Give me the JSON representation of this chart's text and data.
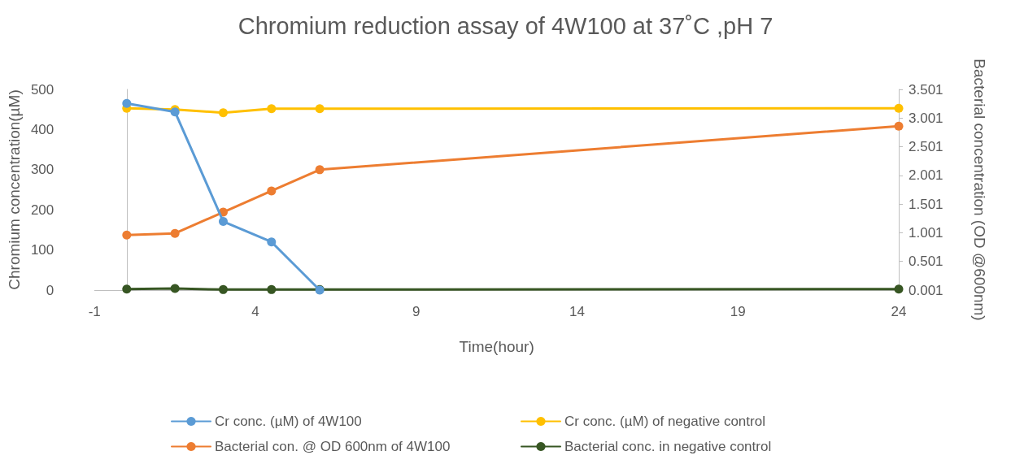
{
  "chart_data": {
    "type": "line",
    "title": "Chromium reduction assay of 4W100 at 37˚C ,pH 7",
    "xlabel": "Time(hour)",
    "ylabel": "Chromium concentration(µM)",
    "y2label": "Bacterial concentration (OD @600nm)",
    "x": [
      0,
      1.5,
      3,
      4.5,
      6,
      24
    ],
    "xlim": [
      -1,
      24
    ],
    "xticks": [
      -1,
      4,
      9,
      14,
      19,
      24
    ],
    "ylim": [
      0,
      500
    ],
    "yticks": [
      0,
      100,
      200,
      300,
      400,
      500
    ],
    "y2lim": [
      0.001,
      3.501
    ],
    "y2ticks": [
      0.001,
      0.501,
      1.001,
      1.501,
      2.001,
      2.501,
      3.001,
      3.501
    ],
    "series": [
      {
        "name": "Cr conc. (µM) of 4W100",
        "color": "#5b9bd5",
        "values": [
          465,
          444,
          171,
          120,
          0,
          null
        ]
      },
      {
        "name": "Cr conc. (µM) of negative control",
        "color": "#ffc000",
        "values": [
          453,
          450,
          442,
          452,
          452,
          453
        ]
      },
      {
        "name": "Bacterial con. @ OD 600nm of 4W100",
        "color": "#ed7d31",
        "axis": "y2",
        "values": [
          0.96,
          0.99,
          1.36,
          1.73,
          2.1,
          2.86
        ]
      },
      {
        "name": "Bacterial conc. in negative control",
        "color": "#375623",
        "axis": "y2",
        "values": [
          0.02,
          0.03,
          0.01,
          0.01,
          0.01,
          0.02
        ]
      }
    ],
    "marker": "circle",
    "line_style": "solid",
    "grid": false,
    "legend": "bottom"
  }
}
